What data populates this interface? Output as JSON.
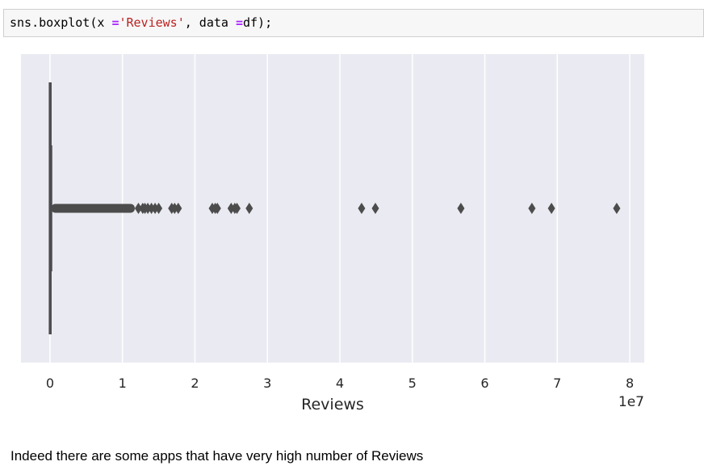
{
  "code": {
    "fn": "sns.boxplot(x ",
    "op1": "=",
    "str": "'Reviews'",
    "mid": ", data ",
    "op2": "=",
    "rest": "df);"
  },
  "caption": "Indeed there are some apps that have very high number of Reviews",
  "chart_data": {
    "type": "boxplot",
    "orientation": "horizontal",
    "xlabel": "Reviews",
    "offset_label": "1e7",
    "xlim": [
      -0.4,
      8.2
    ],
    "xticks": [
      0,
      1,
      2,
      3,
      4,
      5,
      6,
      7,
      8
    ],
    "xtick_labels": [
      "0",
      "1",
      "2",
      "3",
      "4",
      "5",
      "6",
      "7",
      "8"
    ],
    "grid": true,
    "box": {
      "q1": 0.0,
      "median": 0.0,
      "q3": 0.006,
      "whisker_low": 0.0,
      "whisker_high": 0.015
    },
    "dense_outliers_range": [
      0.015,
      1.17
    ],
    "outliers": [
      1.22,
      1.28,
      1.31,
      1.35,
      1.4,
      1.45,
      1.5,
      1.68,
      1.72,
      1.77,
      2.24,
      2.28,
      2.31,
      2.5,
      2.55,
      2.58,
      2.75,
      4.3,
      4.49,
      5.67,
      6.65,
      6.92,
      7.82
    ],
    "colors": {
      "background": "#eaeaf2",
      "grid": "#ffffff",
      "box": "#4c4c4c",
      "text": "#262626"
    }
  }
}
